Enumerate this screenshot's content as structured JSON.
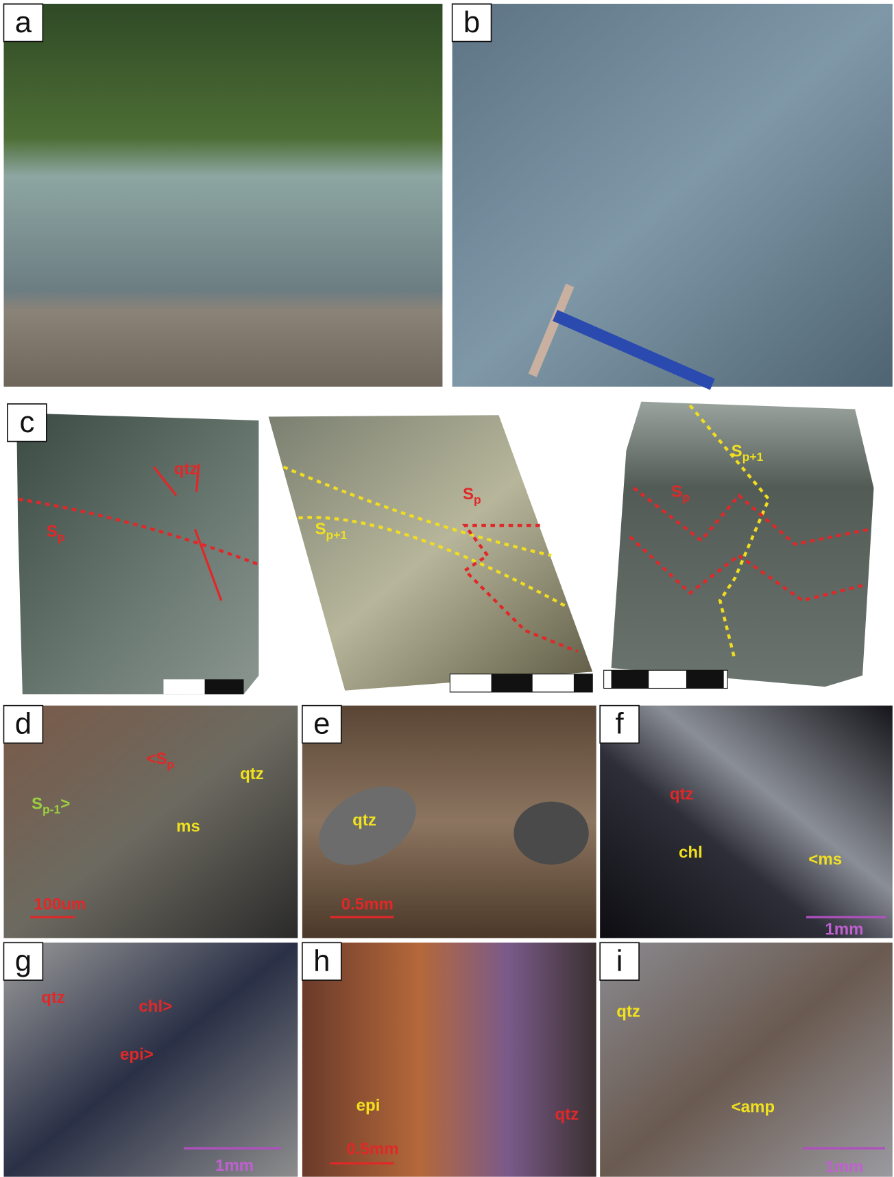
{
  "panels": [
    {
      "label": "a",
      "annotations": []
    },
    {
      "label": "b",
      "annotations": []
    },
    {
      "label": "c",
      "annotations": [
        {
          "text": "qtz"
        },
        {
          "text": "S",
          "sub": "p"
        },
        {
          "text": "S",
          "sub": "p"
        },
        {
          "text": "S",
          "sub": "p+1"
        },
        {
          "text": "S",
          "sub": "p+1"
        },
        {
          "text": "S",
          "sub": "p"
        }
      ]
    },
    {
      "label": "d",
      "annotations": [
        {
          "text": "<S",
          "sub": "p"
        },
        {
          "text": "qtz"
        },
        {
          "text": "S",
          "sub": "p-1",
          "tail": ">"
        },
        {
          "text": "ms"
        },
        {
          "text": "100um"
        }
      ]
    },
    {
      "label": "e",
      "annotations": [
        {
          "text": "qtz"
        },
        {
          "text": "0.5mm"
        }
      ]
    },
    {
      "label": "f",
      "annotations": [
        {
          "text": "qtz"
        },
        {
          "text": "chl"
        },
        {
          "text": "<ms"
        },
        {
          "text": "1mm"
        }
      ]
    },
    {
      "label": "g",
      "annotations": [
        {
          "text": "qtz"
        },
        {
          "text": "chl>"
        },
        {
          "text": "epi>"
        },
        {
          "text": "1mm"
        }
      ]
    },
    {
      "label": "h",
      "annotations": [
        {
          "text": "epi"
        },
        {
          "text": "qtz"
        },
        {
          "text": "0.5mm"
        }
      ]
    },
    {
      "label": "i",
      "annotations": [
        {
          "text": "qtz"
        },
        {
          "text": "<amp"
        },
        {
          "text": "1mm"
        }
      ]
    }
  ]
}
